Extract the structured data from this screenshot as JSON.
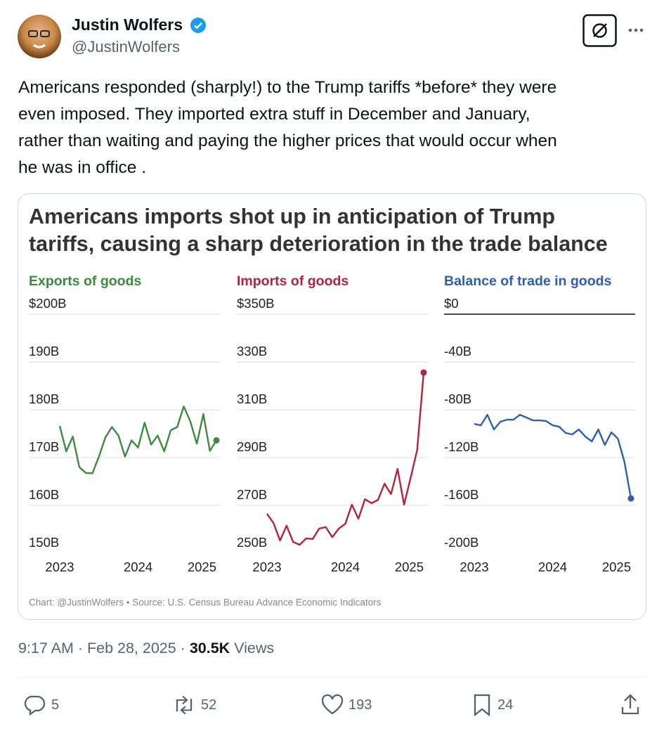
{
  "author": {
    "name": "Justin Wolfers",
    "handle": "@JustinWolfers"
  },
  "text_lines": [
    "Americans responded (sharply!) to the Trump tariffs *before* they were",
    "even imposed. They imported extra stuff in December and January,",
    "rather than waiting and paying the higher prices that would occur when",
    "he was in office ."
  ],
  "chart": {
    "title_lines": [
      "Americans imports shot up in anticipation of Trump",
      "tariffs, causing a sharp deterioration in the trade balance"
    ],
    "source": "Chart: @JustinWolfers • Source: U.S. Census Bureau Advance Economic Indicators",
    "panels": [
      {
        "type": "line",
        "title": "Exports of goods",
        "color": "#3b8a3e",
        "ylim": [
          150,
          200
        ],
        "yticks": [
          {
            "value": 150,
            "label": "150B"
          },
          {
            "value": 160,
            "label": "160B"
          },
          {
            "value": 170,
            "label": "170B"
          },
          {
            "value": 180,
            "label": "180B"
          },
          {
            "value": 190,
            "label": "190B"
          },
          {
            "value": 200,
            "label": "$200B"
          }
        ],
        "xticks": [
          {
            "value": 0,
            "label": "2023"
          },
          {
            "value": 12,
            "label": "2024"
          },
          {
            "value": 24,
            "label": "2025"
          }
        ],
        "values": [
          176.6,
          171.3,
          174.4,
          168,
          166.8,
          166.7,
          170.2,
          174.2,
          176.4,
          174.6,
          170.2,
          173.6,
          172.1,
          177.3,
          172.7,
          174.6,
          171.3,
          175.7,
          176.4,
          180.7,
          177.6,
          172.9,
          179.1,
          171.4,
          173.6
        ]
      },
      {
        "type": "line",
        "title": "Imports of goods",
        "color": "#b3233f",
        "ylim": [
          250,
          350
        ],
        "yticks": [
          {
            "value": 250,
            "label": "250B"
          },
          {
            "value": 270,
            "label": "270B"
          },
          {
            "value": 290,
            "label": "290B"
          },
          {
            "value": 310,
            "label": "310B"
          },
          {
            "value": 330,
            "label": "330B"
          },
          {
            "value": 350,
            "label": "$350B"
          }
        ],
        "xticks": [
          {
            "value": 0,
            "label": "2023"
          },
          {
            "value": 12,
            "label": "2024"
          },
          {
            "value": 24,
            "label": "2025"
          }
        ],
        "values": [
          266.5,
          262.6,
          255.3,
          261.5,
          254.7,
          253.5,
          256.2,
          255.9,
          260.3,
          260.9,
          256.7,
          260.3,
          262.3,
          270.3,
          264.4,
          272.6,
          270.9,
          272.3,
          279.1,
          274.7,
          285.3,
          270.3,
          281.5,
          293.2,
          325.6
        ]
      },
      {
        "type": "line",
        "title": "Balance of trade in goods",
        "color": "#2f5faa",
        "ylim": [
          -200,
          0
        ],
        "yticks": [
          {
            "value": -200,
            "label": "-200B"
          },
          {
            "value": -160,
            "label": "-160B"
          },
          {
            "value": -120,
            "label": "-120B"
          },
          {
            "value": -80,
            "label": "-80B"
          },
          {
            "value": -40,
            "label": "-40B"
          },
          {
            "value": 0,
            "label": "$0"
          }
        ],
        "xticks": [
          {
            "value": 0,
            "label": "2023"
          },
          {
            "value": 12,
            "label": "2024"
          },
          {
            "value": 24,
            "label": "2025"
          }
        ],
        "values": [
          -91.8,
          -93,
          -84.2,
          -96.5,
          -90,
          -88.3,
          -88.3,
          -84.2,
          -86.5,
          -88.9,
          -88.9,
          -89.4,
          -93,
          -94.2,
          -99.4,
          -100.6,
          -96.5,
          -102.4,
          -106.5,
          -96.5,
          -109.4,
          -98.9,
          -104.2,
          -123.6,
          -154.2
        ]
      }
    ]
  },
  "meta": {
    "time": "9:17 AM · Feb 28, 2025 · ",
    "views_count": "30.5K",
    "views_label": "Views"
  },
  "actions": {
    "replies": "5",
    "reposts": "52",
    "likes": "193",
    "bookmarks": "24"
  }
}
